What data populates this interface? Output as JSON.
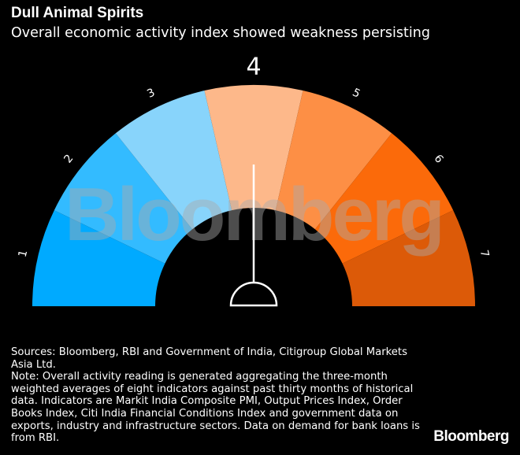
{
  "header": {
    "title": "Dull Animal Spirits",
    "subtitle": "Overall economic activity index showed weakness persisting"
  },
  "chart_data": {
    "type": "gauge",
    "title": "Dull Animal Spirits",
    "subtitle": "Overall economic activity index showed weakness persisting",
    "categories": [
      "1",
      "2",
      "3",
      "4",
      "5",
      "6",
      "7"
    ],
    "colors": [
      "#00aaff",
      "#33bbff",
      "#88d4fb",
      "#fdb88a",
      "#fd8f45",
      "#fb6a0a",
      "#dc5a08"
    ],
    "value": 4,
    "value_label": "4"
  },
  "watermark": "Bloomberg",
  "footer": {
    "sources": "Sources: Bloomberg, RBI and Government of India, Citigroup Global Markets Asia Ltd.",
    "note": "Note: Overall activity reading is generated aggregating the three-month weighted averages of eight indicators against past thirty months of historical data. Indicators are Markit India Composite PMI, Output Prices Index, Order Books Index, Citi India Financial Conditions Index and government data on exports, industry and infrastructure sectors. Data on demand for bank loans is from RBI.",
    "logo": "Bloomberg"
  }
}
